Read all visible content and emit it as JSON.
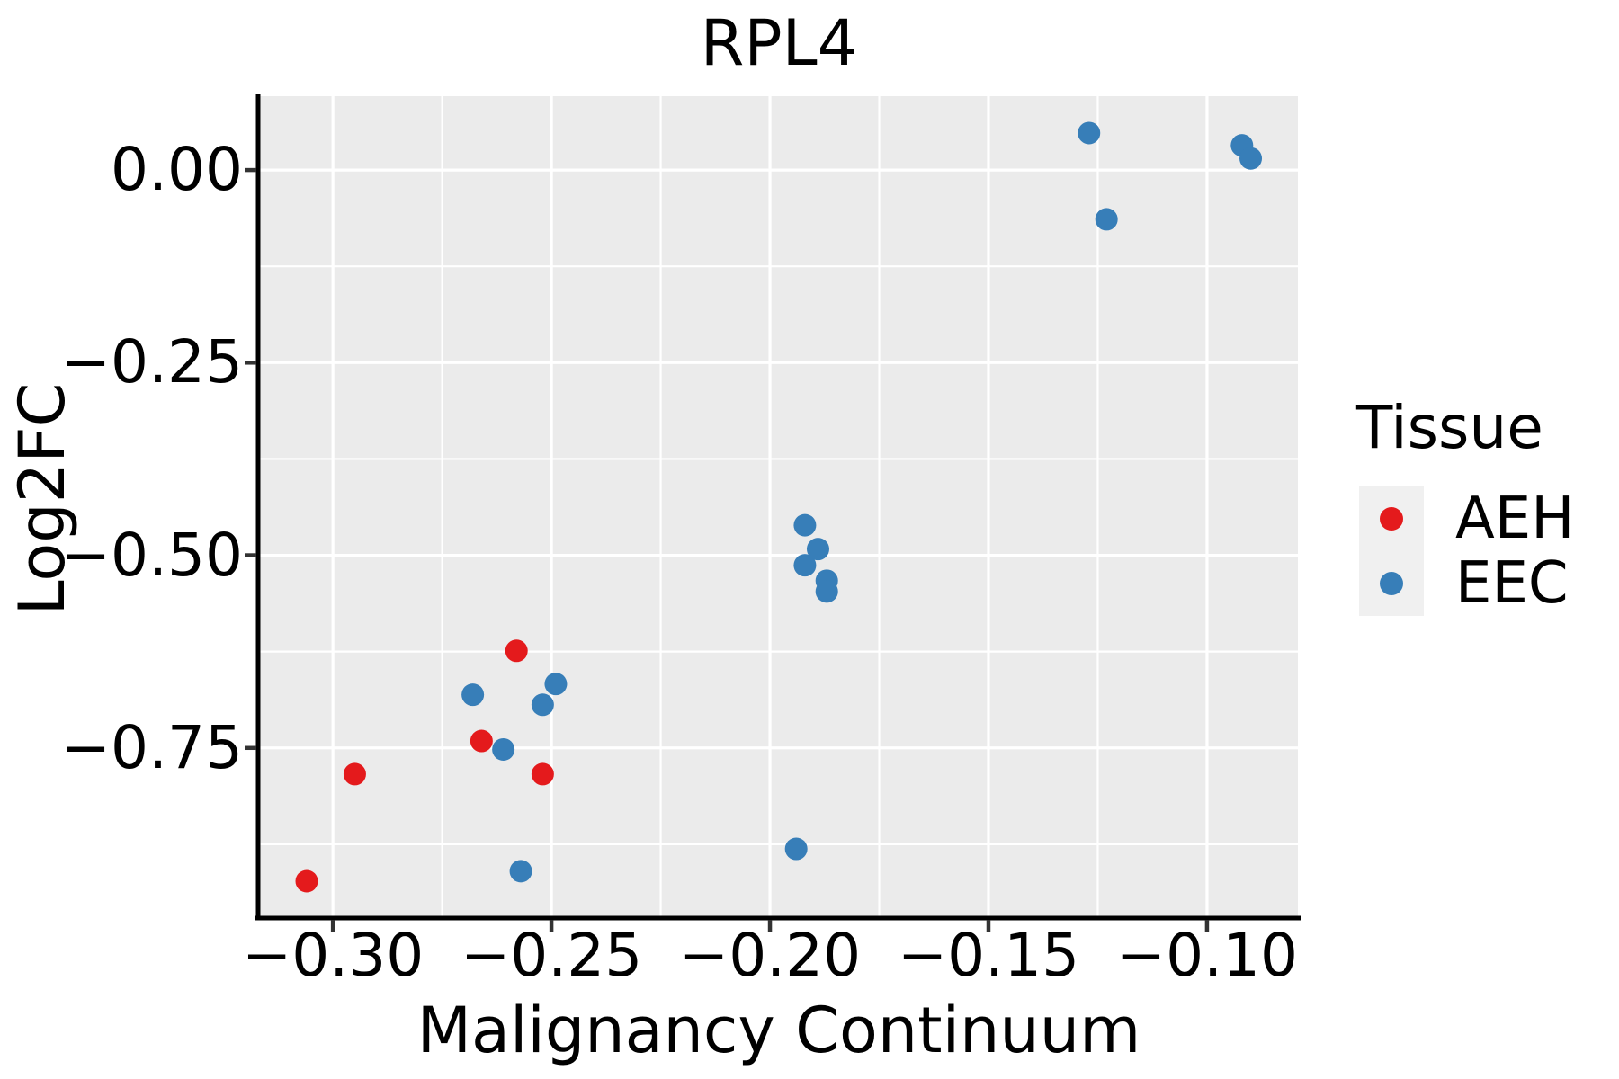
{
  "title": "RPL4",
  "x_axis": {
    "label": "Malignancy Continuum",
    "ticks": [
      {
        "value": -0.3,
        "label": "−0.30"
      },
      {
        "value": -0.25,
        "label": "−0.25"
      },
      {
        "value": -0.2,
        "label": "−0.20"
      },
      {
        "value": -0.15,
        "label": "−0.15"
      },
      {
        "value": -0.1,
        "label": "−0.10"
      }
    ],
    "minor_ticks": [
      -0.275,
      -0.225,
      -0.175,
      -0.125
    ],
    "range": [
      -0.3167,
      -0.0792
    ]
  },
  "y_axis": {
    "label": "Log2FC",
    "ticks": [
      {
        "value": 0.0,
        "label": "0.00"
      },
      {
        "value": -0.25,
        "label": "−0.25"
      },
      {
        "value": -0.5,
        "label": "−0.50"
      },
      {
        "value": -0.75,
        "label": "−0.75"
      }
    ],
    "minor_ticks": [
      -0.125,
      -0.375,
      -0.625,
      -0.875
    ],
    "range": [
      -0.9685,
      0.0958
    ]
  },
  "legend": {
    "title": "Tissue",
    "items": [
      {
        "label": "AEH",
        "color": "#E41A1C"
      },
      {
        "label": "EEC",
        "color": "#377EB8"
      }
    ]
  },
  "style": {
    "panel_bg": "#EBEBEB",
    "grid_color": "#FFFFFF",
    "legend_key_bg": "#F0F0F0",
    "axis_line_color": "#000000",
    "tick_mark_color": "#333333",
    "point_radius": 12.5
  },
  "chart_data": {
    "type": "scatter",
    "title": "RPL4",
    "xlabel": "Malignancy Continuum",
    "ylabel": "Log2FC",
    "xlim": [
      -0.3167,
      -0.0792
    ],
    "ylim": [
      -0.9685,
      0.0958
    ],
    "grid": true,
    "legend_position": "right",
    "series": [
      {
        "name": "AEH",
        "color": "#E41A1C",
        "points": [
          [
            -0.306,
            -0.923
          ],
          [
            -0.295,
            -0.784
          ],
          [
            -0.266,
            -0.741
          ],
          [
            -0.258,
            -0.624
          ],
          [
            -0.252,
            -0.784
          ]
        ]
      },
      {
        "name": "EEC",
        "color": "#377EB8",
        "points": [
          [
            -0.268,
            -0.681
          ],
          [
            -0.261,
            -0.752
          ],
          [
            -0.257,
            -0.91
          ],
          [
            -0.252,
            -0.694
          ],
          [
            -0.249,
            -0.667
          ],
          [
            -0.194,
            -0.881
          ],
          [
            -0.192,
            -0.461
          ],
          [
            -0.192,
            -0.513
          ],
          [
            -0.189,
            -0.492
          ],
          [
            -0.187,
            -0.533
          ],
          [
            -0.187,
            -0.547
          ],
          [
            -0.127,
            0.048
          ],
          [
            -0.123,
            -0.064
          ],
          [
            -0.092,
            0.032
          ],
          [
            -0.09,
            0.015
          ]
        ]
      }
    ]
  }
}
